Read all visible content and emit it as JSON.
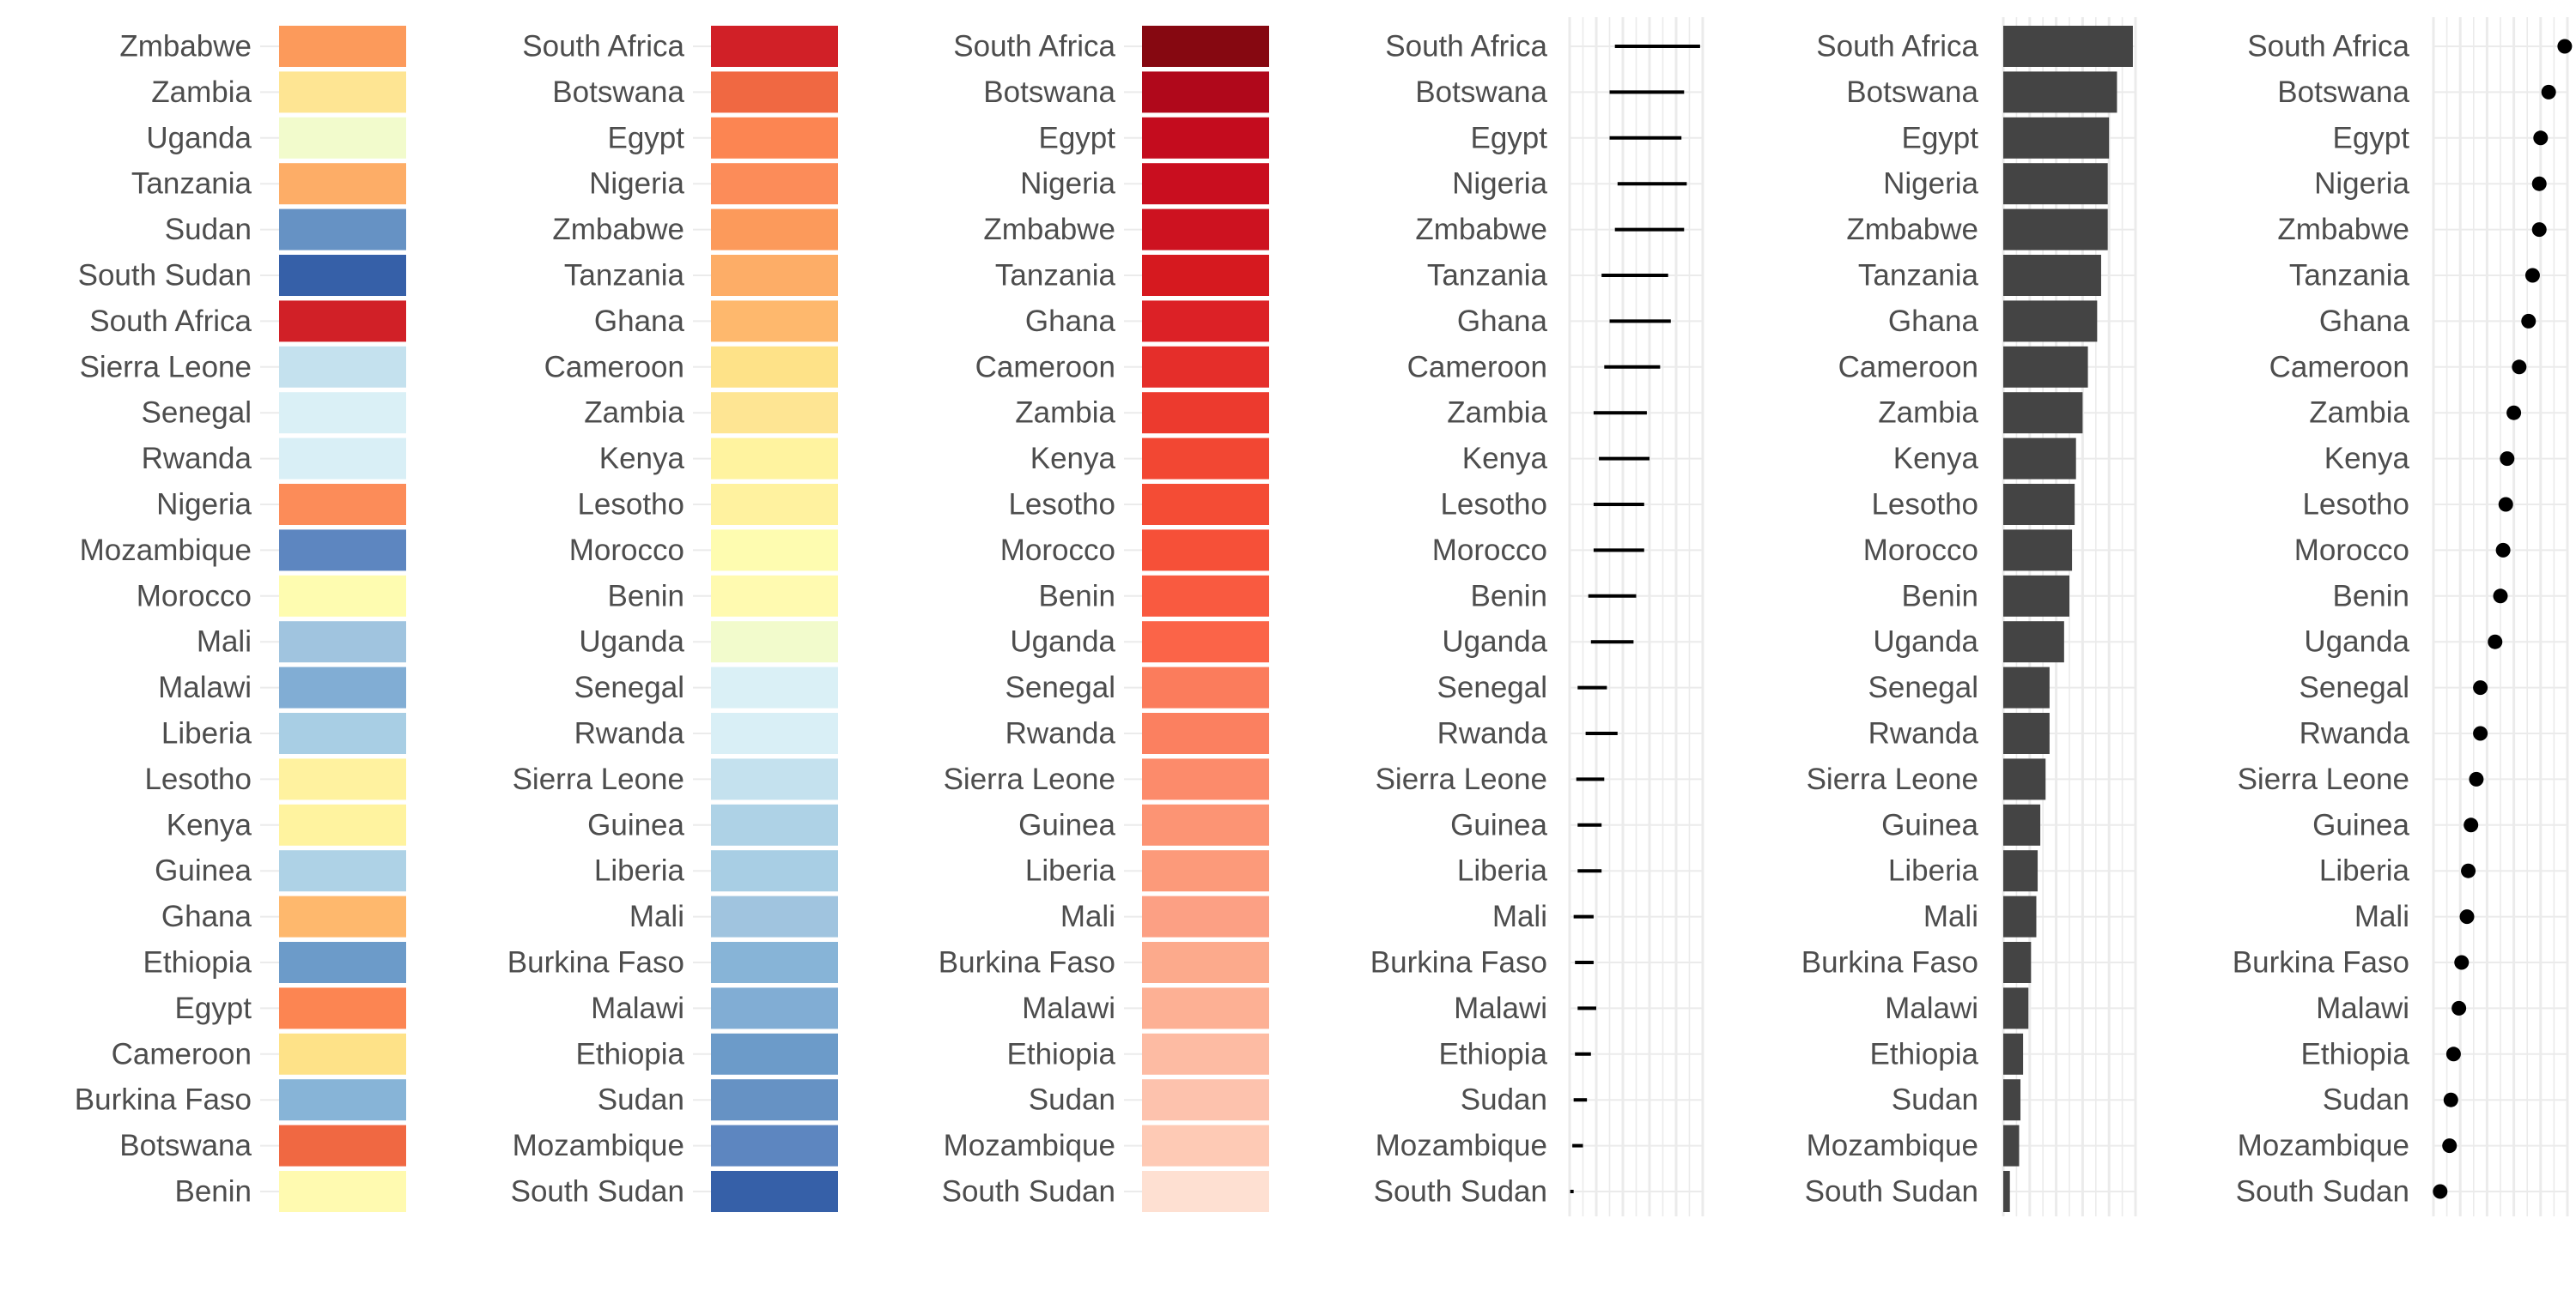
{
  "chart_data": [
    {
      "type": "heatmap",
      "panel": "fill-tile-alphabetical",
      "categories": [
        "Zmbabwe",
        "Zambia",
        "Uganda",
        "Tanzania",
        "Sudan",
        "South Sudan",
        "South Africa",
        "Sierra Leone",
        "Senegal",
        "Rwanda",
        "Nigeria",
        "Mozambique",
        "Morocco",
        "Mali",
        "Malawi",
        "Liberia",
        "Lesotho",
        "Kenya",
        "Guinea",
        "Ghana",
        "Ethiopia",
        "Egypt",
        "Cameroon",
        "Burkina Faso",
        "Botswana",
        "Benin"
      ],
      "colors": [
        "#fc9a5b",
        "#fee593",
        "#f2fbcc",
        "#fdad67",
        "#6692c4",
        "#3660a8",
        "#d12027",
        "#c4e1ee",
        "#daf0f6",
        "#d9eff6",
        "#fc8c59",
        "#5d86c0",
        "#fefcb0",
        "#a0c4df",
        "#81add4",
        "#a8cee4",
        "#fff29f",
        "#fff39f",
        "#aed2e6",
        "#feb86d",
        "#6c9bc9",
        "#fc8552",
        "#fee288",
        "#87b4d7",
        "#f06842",
        "#fffab0"
      ],
      "title": "",
      "xlabel": "",
      "ylabel": ""
    },
    {
      "type": "heatmap",
      "panel": "fill-tile-sorted-diverging",
      "categories": [
        "South Africa",
        "Botswana",
        "Egypt",
        "Nigeria",
        "Zmbabwe",
        "Tanzania",
        "Ghana",
        "Cameroon",
        "Zambia",
        "Kenya",
        "Lesotho",
        "Morocco",
        "Benin",
        "Uganda",
        "Senegal",
        "Rwanda",
        "Sierra Leone",
        "Guinea",
        "Liberia",
        "Mali",
        "Burkina Faso",
        "Malawi",
        "Ethiopia",
        "Sudan",
        "Mozambique",
        "South Sudan"
      ],
      "colors": [
        "#d12027",
        "#f06842",
        "#fc8552",
        "#fc8c59",
        "#fc9a5b",
        "#fdad67",
        "#feb86d",
        "#fee288",
        "#fee593",
        "#fff39f",
        "#fff29f",
        "#fefcb0",
        "#fffab0",
        "#f2fbcc",
        "#daf0f6",
        "#d9eff6",
        "#c4e1ee",
        "#aed2e6",
        "#a8cee4",
        "#a0c4df",
        "#87b4d7",
        "#81add4",
        "#6c9bc9",
        "#6692c4",
        "#5d86c0",
        "#3660a8"
      ],
      "title": "",
      "xlabel": "",
      "ylabel": ""
    },
    {
      "type": "heatmap",
      "panel": "fill-tile-sorted-reds",
      "categories": [
        "South Africa",
        "Botswana",
        "Egypt",
        "Nigeria",
        "Zmbabwe",
        "Tanzania",
        "Ghana",
        "Cameroon",
        "Zambia",
        "Kenya",
        "Lesotho",
        "Morocco",
        "Benin",
        "Uganda",
        "Senegal",
        "Rwanda",
        "Sierra Leone",
        "Guinea",
        "Liberia",
        "Mali",
        "Burkina Faso",
        "Malawi",
        "Ethiopia",
        "Sudan",
        "Mozambique",
        "South Sudan"
      ],
      "colors": [
        "#860811",
        "#b0081b",
        "#c40c1e",
        "#c90e1f",
        "#cd1220",
        "#d6191f",
        "#dc2126",
        "#e52e2a",
        "#ec3a2e",
        "#f24733",
        "#f44c35",
        "#f65038",
        "#f95a40",
        "#fb6448",
        "#fb7c5c",
        "#fb8060",
        "#fc8b6b",
        "#fc9474",
        "#fc9a7a",
        "#fca084",
        "#fcaa8c",
        "#fdb094",
        "#fdbba3",
        "#fdc2ad",
        "#fecab5",
        "#fee0d2"
      ],
      "title": "",
      "xlabel": "",
      "ylabel": ""
    },
    {
      "type": "range",
      "panel": "interval-segments",
      "categories": [
        "South Africa",
        "Botswana",
        "Egypt",
        "Nigeria",
        "Zmbabwe",
        "Tanzania",
        "Ghana",
        "Cameroon",
        "Zambia",
        "Kenya",
        "Lesotho",
        "Morocco",
        "Benin",
        "Uganda",
        "Senegal",
        "Rwanda",
        "Sierra Leone",
        "Guinea",
        "Liberia",
        "Mali",
        "Burkina Faso",
        "Malawi",
        "Ethiopia",
        "Sudan",
        "Mozambique",
        "South Sudan"
      ],
      "low": [
        17,
        15,
        15,
        18,
        17,
        12,
        15,
        13,
        9,
        11,
        9,
        9,
        7,
        8,
        3,
        6,
        2.5,
        3,
        3,
        1.5,
        2,
        3,
        2,
        1.5,
        1,
        0.2
      ],
      "high": [
        49,
        43,
        42,
        44,
        43,
        37,
        38,
        34,
        29,
        30,
        28,
        28,
        25,
        24,
        14,
        18,
        13,
        12,
        12,
        9,
        9,
        10,
        8,
        6.5,
        5,
        1.5
      ],
      "xlim": [
        0,
        50
      ],
      "grid": true,
      "title": "",
      "xlabel": "",
      "ylabel": ""
    },
    {
      "type": "bar",
      "panel": "horizontal-bars",
      "categories": [
        "South Africa",
        "Botswana",
        "Egypt",
        "Nigeria",
        "Zmbabwe",
        "Tanzania",
        "Ghana",
        "Cameroon",
        "Zambia",
        "Kenya",
        "Lesotho",
        "Morocco",
        "Benin",
        "Uganda",
        "Senegal",
        "Rwanda",
        "Sierra Leone",
        "Guinea",
        "Liberia",
        "Mali",
        "Burkina Faso",
        "Malawi",
        "Ethiopia",
        "Sudan",
        "Mozambique",
        "South Sudan"
      ],
      "values": [
        49,
        43,
        40,
        39.5,
        39.5,
        37,
        35.5,
        32,
        30,
        27.5,
        27,
        26,
        25,
        23,
        17.5,
        17.5,
        16,
        14,
        13,
        12.5,
        10.5,
        9.5,
        7.5,
        6.5,
        6,
        2.5
      ],
      "xlim": [
        0,
        50
      ],
      "grid": true,
      "bar_color": "#444444",
      "title": "",
      "xlabel": "",
      "ylabel": ""
    },
    {
      "type": "scatter",
      "panel": "dot-plot",
      "categories": [
        "South Africa",
        "Botswana",
        "Egypt",
        "Nigeria",
        "Zmbabwe",
        "Tanzania",
        "Ghana",
        "Cameroon",
        "Zambia",
        "Kenya",
        "Lesotho",
        "Morocco",
        "Benin",
        "Uganda",
        "Senegal",
        "Rwanda",
        "Sierra Leone",
        "Guinea",
        "Liberia",
        "Mali",
        "Burkina Faso",
        "Malawi",
        "Ethiopia",
        "Sudan",
        "Mozambique",
        "South Sudan"
      ],
      "values": [
        49,
        43,
        40,
        39.5,
        39.5,
        37,
        35.5,
        32,
        30,
        27.5,
        27,
        26,
        25,
        23,
        17.5,
        17.5,
        16,
        14,
        13,
        12.5,
        10.5,
        9.5,
        7.5,
        6.5,
        6,
        2.5
      ],
      "xlim": [
        0,
        50
      ],
      "grid": true,
      "point_color": "#000000",
      "title": "",
      "xlabel": "",
      "ylabel": ""
    }
  ]
}
